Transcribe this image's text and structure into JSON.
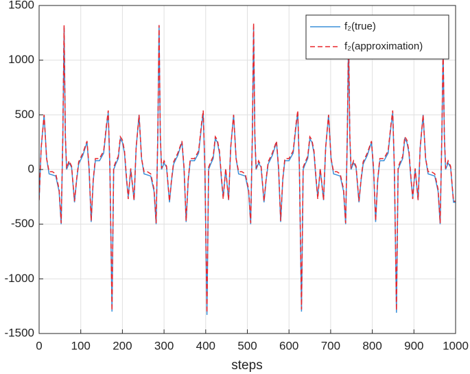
{
  "chart_data": {
    "type": "line",
    "xlabel": "steps",
    "x": [
      0,
      5,
      12,
      18,
      24,
      32,
      40,
      48,
      53,
      57,
      60,
      63,
      66,
      72,
      78,
      85,
      90,
      95,
      105,
      115,
      120,
      125,
      130,
      135,
      145,
      155,
      162,
      166,
      170,
      175,
      179,
      184,
      190,
      195,
      200,
      205,
      210,
      214,
      220,
      228,
      233,
      240,
      246,
      252,
      260,
      268,
      276,
      281,
      285,
      288,
      291,
      294,
      300,
      306,
      313,
      318,
      323,
      333,
      343,
      348,
      353,
      358,
      363,
      373,
      383,
      390,
      394,
      398,
      403,
      407,
      412,
      418,
      423,
      428,
      433,
      438,
      442,
      448,
      455,
      460,
      467,
      473,
      479,
      487,
      495,
      503,
      508,
      512,
      515,
      518,
      521,
      527,
      533,
      540,
      545,
      550,
      560,
      570,
      575,
      580,
      585,
      590,
      600,
      610,
      617,
      621,
      625,
      630,
      634,
      639,
      645,
      650,
      655,
      660,
      665,
      669,
      675,
      683,
      688,
      695,
      701,
      707,
      715,
      723,
      731,
      736,
      740,
      743,
      746,
      749,
      755,
      761,
      768,
      773,
      778,
      788,
      798,
      803,
      808,
      813,
      818,
      828,
      838,
      845,
      849,
      853,
      858,
      862,
      867,
      873,
      878,
      883,
      888,
      893,
      897,
      903,
      910,
      915,
      922,
      928,
      934,
      942,
      950,
      958,
      963,
      967,
      970,
      973,
      976,
      982,
      988,
      995,
      1000
    ],
    "series": [
      {
        "name": "f₂(true)",
        "color": "#3a8fd8",
        "dash": false,
        "values": [
          -280,
          200,
          500,
          100,
          -40,
          -50,
          -60,
          -200,
          -500,
          300,
          1300,
          300,
          0,
          60,
          20,
          -300,
          -100,
          50,
          130,
          250,
          0,
          -480,
          -100,
          80,
          80,
          150,
          400,
          520,
          0,
          -1300,
          0,
          50,
          100,
          280,
          250,
          150,
          -100,
          -250,
          0,
          -280,
          200,
          500,
          100,
          -40,
          -50,
          -60,
          -200,
          -500,
          300,
          1320,
          300,
          0,
          60,
          20,
          -300,
          -100,
          50,
          130,
          250,
          0,
          -480,
          -100,
          80,
          80,
          150,
          400,
          520,
          0,
          -1330,
          0,
          50,
          100,
          280,
          250,
          150,
          -100,
          -250,
          0,
          -280,
          200,
          500,
          100,
          -40,
          -50,
          -60,
          -200,
          -500,
          300,
          1300,
          300,
          0,
          60,
          20,
          -300,
          -100,
          50,
          130,
          250,
          0,
          -480,
          -100,
          80,
          80,
          150,
          400,
          520,
          0,
          -1300,
          0,
          50,
          100,
          280,
          250,
          150,
          -100,
          -250,
          0,
          -280,
          200,
          500,
          100,
          -40,
          -50,
          -60,
          -200,
          -500,
          300,
          1250,
          300,
          0,
          60,
          20,
          -300,
          -100,
          50,
          130,
          250,
          0,
          -480,
          -100,
          80,
          80,
          150,
          400,
          520,
          0,
          -1310,
          0,
          50,
          100,
          280,
          250,
          150,
          -100,
          -250,
          0,
          -280,
          200,
          500,
          100,
          -40,
          -50,
          -60,
          -200,
          -500,
          300,
          1100,
          300,
          0,
          60,
          20,
          -300,
          -300
        ]
      },
      {
        "name": "f₂(approximation)",
        "color": "#e8262b",
        "dash": true,
        "values": [
          -280,
          200,
          500,
          100,
          -20,
          -20,
          -40,
          -180,
          -490,
          320,
          1320,
          320,
          10,
          80,
          30,
          -290,
          -90,
          70,
          150,
          260,
          20,
          -470,
          -90,
          100,
          100,
          170,
          420,
          540,
          20,
          -1290,
          20,
          70,
          120,
          300,
          270,
          170,
          -80,
          -270,
          10,
          -280,
          200,
          500,
          100,
          -20,
          -20,
          -40,
          -180,
          -490,
          320,
          1320,
          320,
          10,
          80,
          30,
          -290,
          -90,
          70,
          150,
          260,
          20,
          -470,
          -90,
          100,
          100,
          170,
          420,
          540,
          20,
          -1310,
          20,
          70,
          120,
          300,
          270,
          170,
          -80,
          -270,
          10,
          -280,
          200,
          500,
          100,
          -20,
          -20,
          -40,
          -180,
          -490,
          320,
          1340,
          320,
          10,
          80,
          30,
          -290,
          -90,
          70,
          150,
          260,
          20,
          -470,
          -90,
          100,
          100,
          170,
          420,
          540,
          20,
          -1280,
          20,
          70,
          120,
          300,
          270,
          170,
          -80,
          -270,
          10,
          -280,
          200,
          500,
          100,
          -20,
          -20,
          -40,
          -180,
          -490,
          320,
          1250,
          320,
          10,
          80,
          30,
          -290,
          -90,
          70,
          150,
          260,
          20,
          -470,
          -90,
          100,
          100,
          170,
          420,
          540,
          20,
          -1290,
          20,
          70,
          120,
          300,
          270,
          170,
          -80,
          -270,
          10,
          -280,
          200,
          500,
          100,
          -20,
          -20,
          -40,
          -180,
          -490,
          320,
          1120,
          320,
          10,
          80,
          30,
          -290,
          -290
        ]
      }
    ],
    "xlim": [
      0,
      1000
    ],
    "xticks": [
      0,
      100,
      200,
      300,
      400,
      500,
      600,
      700,
      800,
      900,
      1000
    ],
    "ylim": [
      -1500,
      1500
    ],
    "yticks": [
      -1500,
      -1000,
      -500,
      0,
      500,
      1000,
      1500
    ],
    "grid": true,
    "legend": "northeast"
  }
}
